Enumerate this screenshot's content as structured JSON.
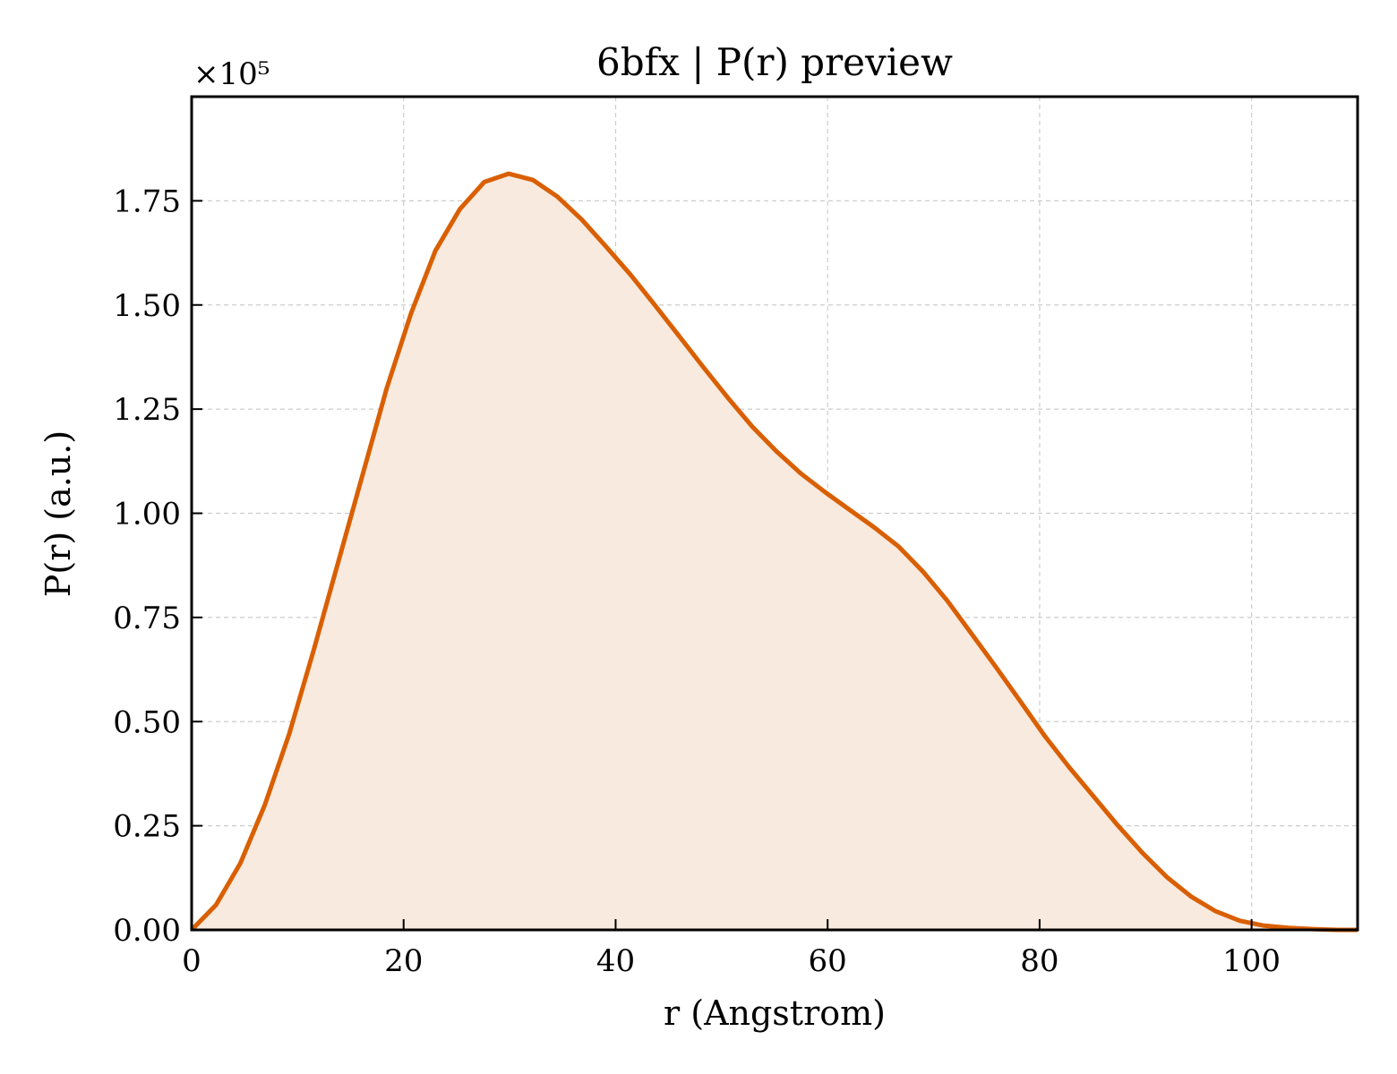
{
  "chart_data": {
    "type": "area",
    "title": "6bfx | P(r) preview",
    "xlabel": "r (Angstrom)",
    "ylabel": "P(r) (a.u.)",
    "y_multiplier_label": "×10⁵",
    "xlim": [
      0,
      110
    ],
    "ylim": [
      0,
      2.0
    ],
    "xticks": [
      0,
      20,
      40,
      60,
      80,
      100
    ],
    "xtick_labels": [
      "0",
      "20",
      "40",
      "60",
      "80",
      "100"
    ],
    "yticks": [
      0,
      0.25,
      0.5,
      0.75,
      1.0,
      1.25,
      1.5,
      1.75
    ],
    "ytick_labels": [
      "0.00",
      "0.25",
      "0.50",
      "0.75",
      "1.00",
      "1.25",
      "1.50",
      "1.75"
    ],
    "grid": true,
    "line_color": "#d95f02",
    "fill_color": "#f8eadf",
    "series": [
      {
        "x": [
          0,
          2.3,
          4.6,
          6.9,
          9.2,
          11.5,
          13.8,
          16.1,
          18.4,
          20.7,
          23.0,
          25.3,
          27.6,
          29.9,
          32.2,
          34.5,
          36.8,
          39.1,
          41.4,
          43.7,
          46.0,
          48.3,
          50.6,
          52.9,
          55.2,
          57.5,
          59.8,
          62.1,
          64.4,
          66.7,
          69.0,
          71.3,
          73.6,
          75.9,
          78.2,
          80.5,
          82.8,
          85.1,
          87.4,
          89.7,
          92.0,
          94.3,
          96.6,
          98.9,
          101.2,
          103.5,
          105.8,
          108.1,
          110.0
        ],
        "y": [
          0.0,
          0.06,
          0.16,
          0.3,
          0.47,
          0.67,
          0.88,
          1.09,
          1.3,
          1.48,
          1.63,
          1.73,
          1.795,
          1.815,
          1.8,
          1.76,
          1.705,
          1.64,
          1.573,
          1.5,
          1.425,
          1.35,
          1.277,
          1.208,
          1.148,
          1.095,
          1.05,
          1.008,
          0.966,
          0.92,
          0.86,
          0.79,
          0.71,
          0.63,
          0.548,
          0.465,
          0.39,
          0.32,
          0.25,
          0.185,
          0.127,
          0.08,
          0.045,
          0.022,
          0.01,
          0.005,
          0.002,
          0.0,
          0.0
        ]
      }
    ]
  }
}
